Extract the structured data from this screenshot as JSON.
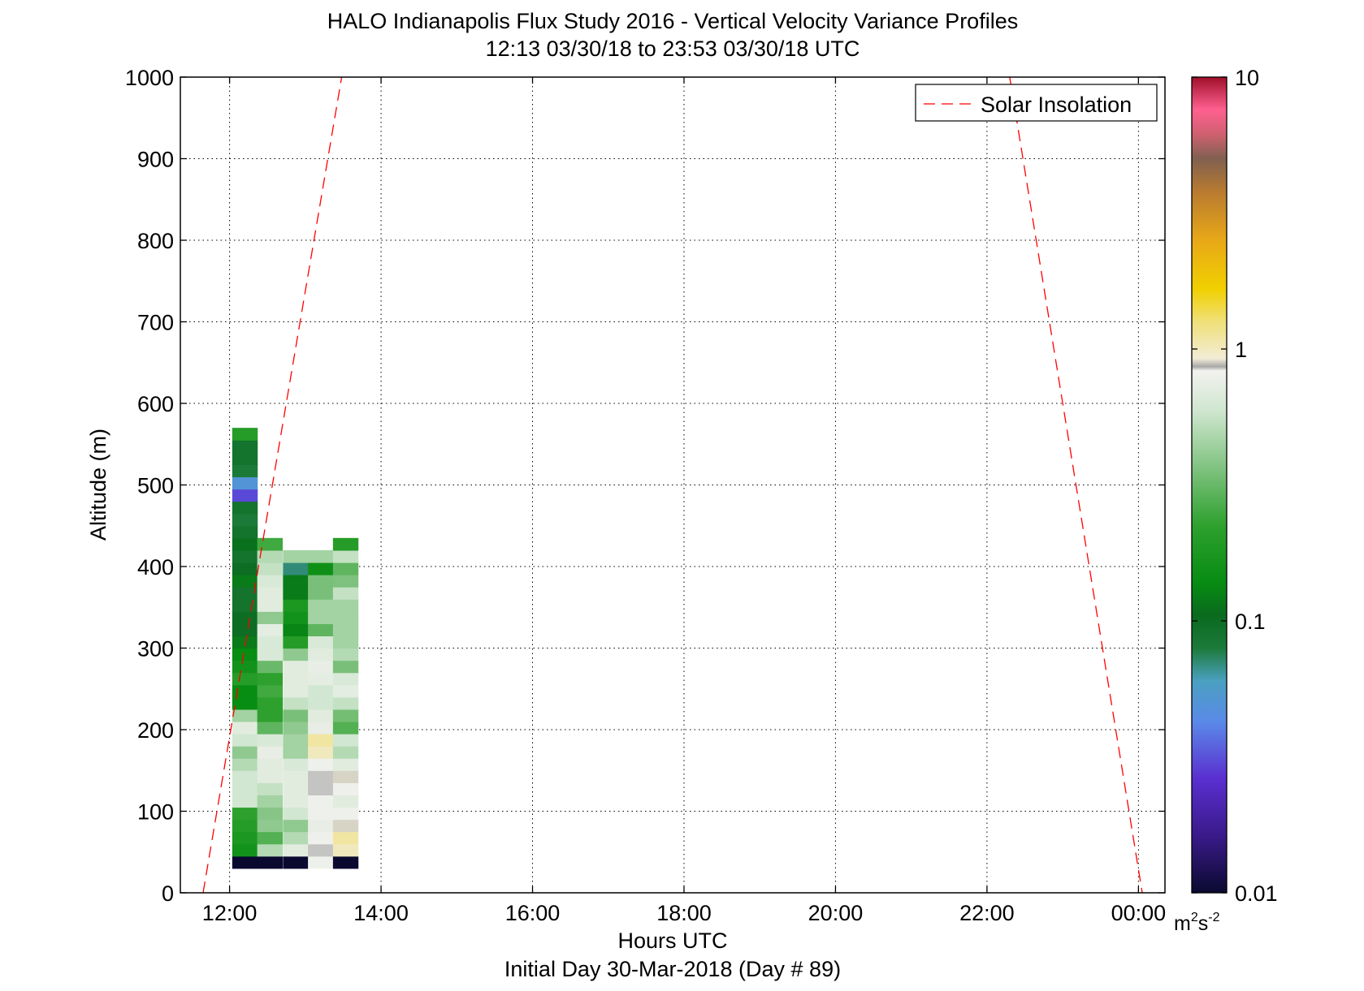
{
  "chart_data": {
    "type": "heatmap",
    "title_line1": "HALO Indianapolis Flux Study 2016 - Vertical Velocity Variance Profiles",
    "title_line2": "12:13 03/30/18 to 23:53 03/30/18  UTC",
    "xlabel": "Hours UTC",
    "xlabel_sub": "Initial Day 30-Mar-2018 (Day # 89)",
    "ylabel": "Altitude (m)",
    "x_unit": "hours UTC",
    "xlim": [
      11.35,
      24.35
    ],
    "ylim": [
      0,
      1000
    ],
    "x_ticks": [
      12,
      14,
      16,
      18,
      20,
      22,
      24
    ],
    "x_tick_labels": [
      "12:00",
      "14:00",
      "16:00",
      "18:00",
      "20:00",
      "22:00",
      "00:00"
    ],
    "y_ticks": [
      0,
      100,
      200,
      300,
      400,
      500,
      600,
      700,
      800,
      900,
      1000
    ],
    "y_tick_labels": [
      "0",
      "100",
      "200",
      "300",
      "400",
      "500",
      "600",
      "700",
      "800",
      "900",
      "1000"
    ],
    "grid": true,
    "legend": {
      "position": "top-right",
      "entries": [
        "Solar Insolation"
      ]
    },
    "colorbar": {
      "scale": "log",
      "range": [
        0.01,
        10
      ],
      "ticks": [
        0.01,
        0.1,
        1,
        10
      ],
      "tick_labels": [
        "0.01",
        "0.1",
        "1",
        "10"
      ],
      "units": "m²s⁻²",
      "stops": [
        [
          0.0,
          "#0a0a30"
        ],
        [
          0.07,
          "#3a1a8a"
        ],
        [
          0.14,
          "#5a2fd0"
        ],
        [
          0.21,
          "#5a8ae8"
        ],
        [
          0.26,
          "#4aa0c0"
        ],
        [
          0.3,
          "#1c7a3a"
        ],
        [
          0.34,
          "#0a6a1e"
        ],
        [
          0.38,
          "#078c12"
        ],
        [
          0.45,
          "#2ea12e"
        ],
        [
          0.52,
          "#7fc27f"
        ],
        [
          0.59,
          "#cfe6cf"
        ],
        [
          0.64,
          "#f2f2ee"
        ],
        [
          0.645,
          "#a8a8a8"
        ],
        [
          0.655,
          "#f2ecd6"
        ],
        [
          0.7,
          "#f0e07a"
        ],
        [
          0.74,
          "#f0d000"
        ],
        [
          0.8,
          "#e8a818"
        ],
        [
          0.86,
          "#b87a30"
        ],
        [
          0.9,
          "#806050"
        ],
        [
          0.93,
          "#d06070"
        ],
        [
          0.96,
          "#ff6090"
        ],
        [
          1.0,
          "#a0102a"
        ]
      ]
    },
    "solar_insolation": {
      "style": "dashed",
      "color": "#ff0000",
      "segments": [
        {
          "x": [
            11.65,
            13.48
          ],
          "y": [
            0,
            1000
          ]
        },
        {
          "x": [
            22.3,
            24.05
          ],
          "y": [
            1000,
            0
          ]
        }
      ]
    },
    "altitude_bins_m": [
      30,
      45,
      60,
      75,
      90,
      105,
      120,
      135,
      150,
      165,
      180,
      195,
      210,
      225,
      240,
      255,
      270,
      285,
      300,
      315,
      330,
      345,
      360,
      375,
      390,
      405,
      420,
      435,
      450,
      465,
      480,
      495,
      510,
      525,
      540,
      555,
      570,
      585,
      600,
      615,
      630,
      645,
      660,
      675,
      690,
      705,
      720,
      735,
      750,
      765,
      780,
      795,
      810,
      825,
      840,
      855,
      870,
      885,
      900,
      915
    ],
    "series": [
      {
        "time": 12.2,
        "variance_m2s2": [
          0.01,
          0.16,
          0.18,
          0.2,
          0.22,
          0.6,
          0.6,
          0.6,
          0.5,
          0.4,
          0.6,
          0.7,
          0.45,
          0.14,
          0.14,
          0.2,
          0.16,
          0.14,
          0.12,
          0.1,
          0.1,
          0.09,
          0.09,
          0.12,
          0.1,
          0.09,
          0.11,
          0.09,
          0.08,
          0.09,
          0.03,
          0.05,
          0.08,
          0.09,
          0.09,
          0.2
        ]
      },
      {
        "time": 12.53,
        "variance_m2s2": [
          0.01,
          0.5,
          0.28,
          0.4,
          0.38,
          0.45,
          0.55,
          0.7,
          0.7,
          0.75,
          0.65,
          0.3,
          0.22,
          0.22,
          0.25,
          0.22,
          0.32,
          0.65,
          0.65,
          0.72,
          0.4,
          0.7,
          0.7,
          0.65,
          0.55,
          0.5,
          0.25
        ]
      },
      {
        "time": 12.87,
        "variance_m2s2": [
          0.01,
          0.7,
          0.5,
          0.4,
          0.6,
          0.7,
          0.7,
          0.7,
          0.65,
          0.45,
          0.45,
          0.4,
          0.35,
          0.55,
          0.7,
          0.7,
          0.7,
          0.4,
          0.2,
          0.13,
          0.16,
          0.18,
          0.12,
          0.12,
          0.07,
          0.45
        ]
      },
      {
        "time": 13.2,
        "variance_m2s2": [
          0.8,
          0.85,
          0.8,
          0.75,
          0.8,
          0.8,
          0.85,
          0.85,
          0.8,
          1.0,
          1.1,
          0.75,
          0.7,
          0.6,
          0.6,
          0.72,
          0.75,
          0.7,
          0.65,
          0.3,
          0.45,
          0.45,
          0.35,
          0.35,
          0.15,
          0.45
        ]
      },
      {
        "time": 13.53,
        "variance_m2s2": [
          0.01,
          1.0,
          1.1,
          0.9,
          0.8,
          0.7,
          0.8,
          0.9,
          0.7,
          0.5,
          0.6,
          0.28,
          0.34,
          0.55,
          0.72,
          0.65,
          0.35,
          0.5,
          0.45,
          0.45,
          0.45,
          0.45,
          0.55,
          0.36,
          0.3,
          0.55,
          0.2
        ]
      }
    ]
  }
}
